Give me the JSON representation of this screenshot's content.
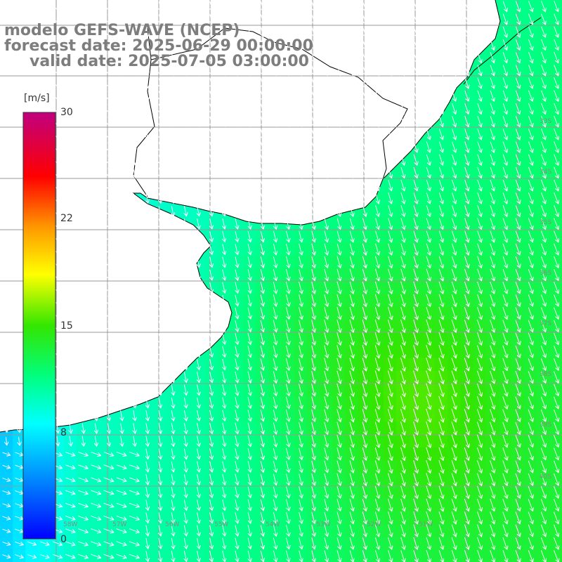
{
  "title": {
    "line1": "modelo GEFS-WAVE (NCEP)",
    "line2": "forecast date: 2025-06-29 00:00:00",
    "line3": "valid date: 2025-07-05 03:00:00"
  },
  "colorbar": {
    "unit": "[m/s]",
    "ticks": [
      "30",
      "22",
      "15",
      "8",
      "0"
    ]
  },
  "grid": {
    "lat_labels": [
      "33S",
      "34S",
      "35S",
      "36S",
      "37S",
      "38S",
      "39S",
      "40S"
    ],
    "lon_labels": [
      "58W",
      "57W",
      "56W",
      "55W",
      "54W",
      "53W",
      "52W",
      "51W"
    ]
  },
  "colors": {
    "land": "#ffffff",
    "coast": "#000000",
    "grid": "#999999",
    "arrows": "#ffffff",
    "label": "#7d7d7d"
  }
}
